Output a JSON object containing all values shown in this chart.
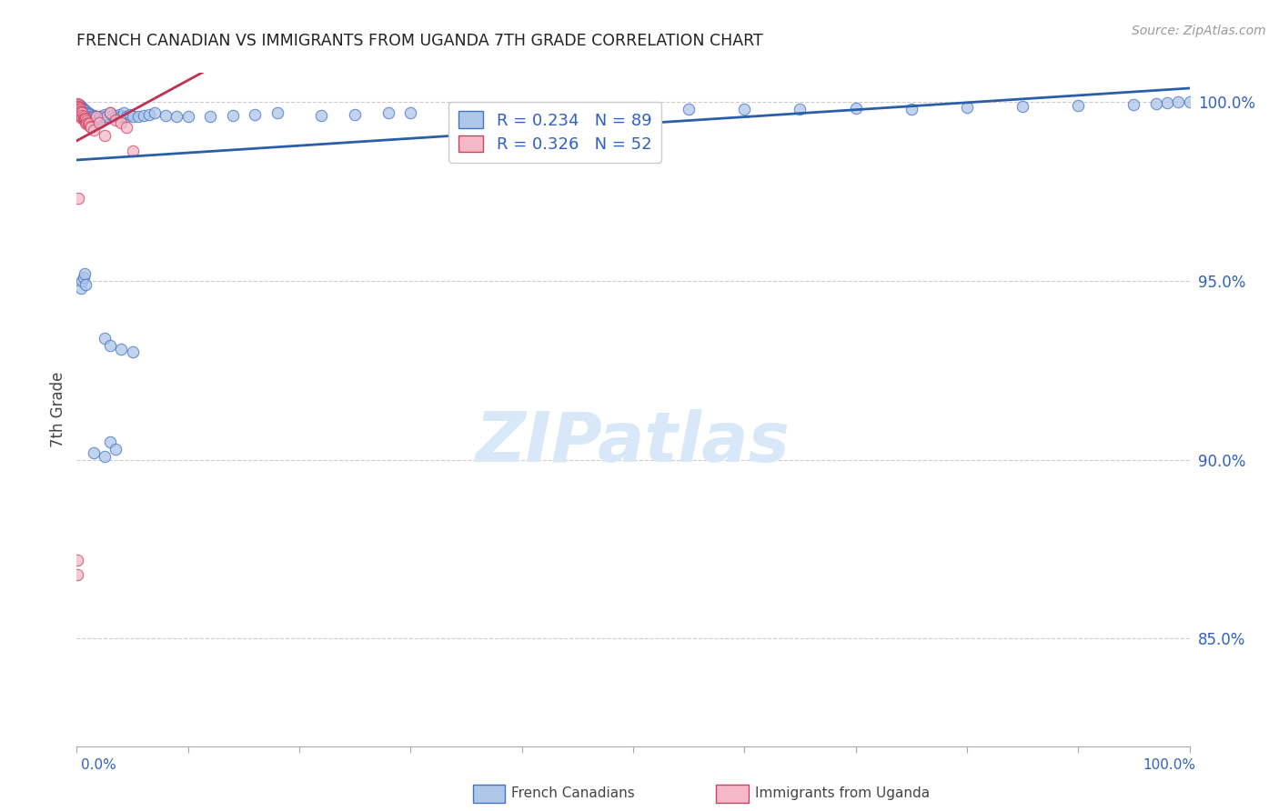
{
  "title": "FRENCH CANADIAN VS IMMIGRANTS FROM UGANDA 7TH GRADE CORRELATION CHART",
  "source": "Source: ZipAtlas.com",
  "ylabel": "7th Grade",
  "blue_R": 0.234,
  "blue_N": 89,
  "pink_R": 0.326,
  "pink_N": 52,
  "blue_color": "#aec6e8",
  "blue_edge_color": "#4472c4",
  "pink_color": "#f4b8c8",
  "pink_edge_color": "#d04060",
  "blue_line_color": "#2a5fa8",
  "pink_line_color": "#c03050",
  "legend_text_color": "#3060c0",
  "background_color": "#ffffff",
  "grid_color": "#cccccc",
  "watermark_color": "#d8e8f8",
  "title_color": "#222222",
  "source_color": "#999999",
  "xlim": [
    0.0,
    1.0
  ],
  "ylim": [
    0.82,
    1.008
  ],
  "ytick_values": [
    1.0,
    0.95,
    0.9,
    0.85
  ],
  "ytick_labels": [
    "100.0%",
    "95.0%",
    "90.0%",
    "85.0%"
  ],
  "blue_x": [
    0.001,
    0.002,
    0.002,
    0.003,
    0.003,
    0.004,
    0.004,
    0.005,
    0.005,
    0.006,
    0.006,
    0.007,
    0.007,
    0.008,
    0.008,
    0.009,
    0.009,
    0.01,
    0.01,
    0.011,
    0.011,
    0.012,
    0.013,
    0.014,
    0.015,
    0.016,
    0.017,
    0.018,
    0.019,
    0.02,
    0.021,
    0.022,
    0.024,
    0.025,
    0.027,
    0.03,
    0.032,
    0.035,
    0.038,
    0.04,
    0.042,
    0.045,
    0.048,
    0.05,
    0.055,
    0.06,
    0.065,
    0.07,
    0.08,
    0.09,
    0.1,
    0.12,
    0.14,
    0.16,
    0.18,
    0.22,
    0.25,
    0.28,
    0.3,
    0.35,
    0.4,
    0.45,
    0.5,
    0.55,
    0.6,
    0.65,
    0.7,
    0.75,
    0.8,
    0.85,
    0.9,
    0.95,
    0.97,
    0.98,
    0.99,
    1.0,
    0.004,
    0.005,
    0.006,
    0.007,
    0.008,
    0.015,
    0.025,
    0.03,
    0.035,
    0.025,
    0.03,
    0.04,
    0.05
  ],
  "blue_y": [
    0.999,
    0.9985,
    0.9992,
    0.9988,
    0.9982,
    0.9986,
    0.9978,
    0.9984,
    0.9975,
    0.998,
    0.9972,
    0.9976,
    0.9968,
    0.9974,
    0.9965,
    0.997,
    0.9962,
    0.9968,
    0.996,
    0.9966,
    0.9958,
    0.9964,
    0.996,
    0.9956,
    0.9962,
    0.9958,
    0.9955,
    0.996,
    0.9952,
    0.9958,
    0.9954,
    0.996,
    0.9958,
    0.9965,
    0.996,
    0.9968,
    0.9962,
    0.9958,
    0.9965,
    0.996,
    0.9968,
    0.9958,
    0.9965,
    0.996,
    0.9958,
    0.9962,
    0.9965,
    0.9968,
    0.9962,
    0.9958,
    0.996,
    0.9958,
    0.9962,
    0.9965,
    0.9968,
    0.9962,
    0.9965,
    0.9968,
    0.997,
    0.9968,
    0.997,
    0.9972,
    0.9975,
    0.9978,
    0.998,
    0.9978,
    0.9982,
    0.998,
    0.9985,
    0.9988,
    0.999,
    0.9992,
    0.9995,
    0.9998,
    0.9999,
    1.0,
    0.948,
    0.95,
    0.951,
    0.952,
    0.949,
    0.902,
    0.901,
    0.905,
    0.903,
    0.934,
    0.932,
    0.931,
    0.93
  ],
  "pink_x": [
    0.0005,
    0.0005,
    0.001,
    0.001,
    0.001,
    0.001,
    0.001,
    0.0015,
    0.0015,
    0.002,
    0.002,
    0.002,
    0.002,
    0.0025,
    0.0025,
    0.003,
    0.003,
    0.003,
    0.003,
    0.003,
    0.0035,
    0.004,
    0.004,
    0.004,
    0.005,
    0.005,
    0.005,
    0.006,
    0.006,
    0.007,
    0.007,
    0.008,
    0.008,
    0.009,
    0.009,
    0.01,
    0.01,
    0.011,
    0.012,
    0.013,
    0.015,
    0.018,
    0.02,
    0.025,
    0.03,
    0.035,
    0.04,
    0.045,
    0.05,
    0.001,
    0.0008,
    0.0008
  ],
  "pink_y": [
    0.9995,
    0.999,
    0.9992,
    0.9988,
    0.9985,
    0.9982,
    0.9978,
    0.9985,
    0.998,
    0.9985,
    0.998,
    0.9975,
    0.997,
    0.9978,
    0.9972,
    0.998,
    0.9975,
    0.997,
    0.9965,
    0.996,
    0.9968,
    0.9972,
    0.9965,
    0.996,
    0.9968,
    0.9962,
    0.9955,
    0.996,
    0.9952,
    0.9955,
    0.9948,
    0.995,
    0.9942,
    0.9945,
    0.9938,
    0.9942,
    0.9935,
    0.9938,
    0.9932,
    0.9928,
    0.992,
    0.9958,
    0.994,
    0.9905,
    0.9968,
    0.9948,
    0.9942,
    0.9928,
    0.9862,
    0.973,
    0.872,
    0.868
  ]
}
